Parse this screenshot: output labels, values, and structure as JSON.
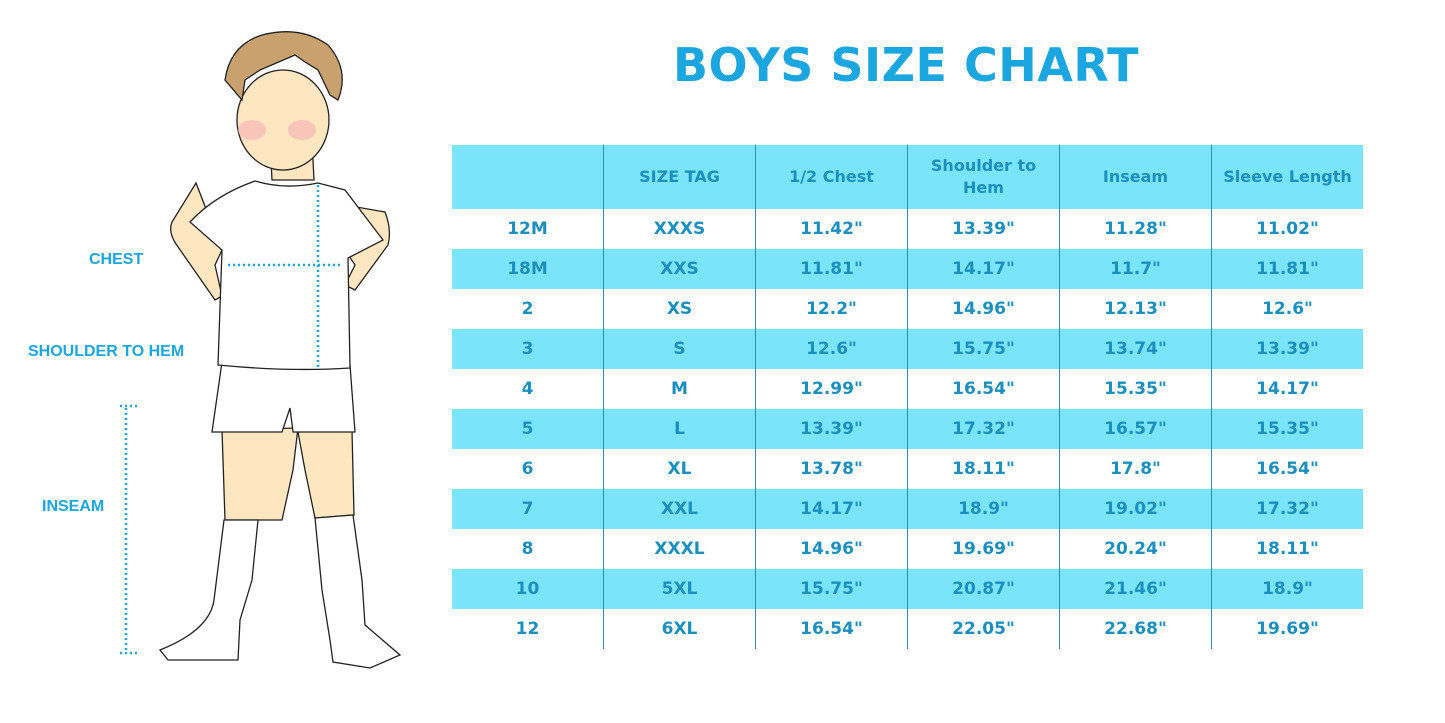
{
  "title": "BOYS SIZE CHART",
  "figure_labels": {
    "chest": "CHEST",
    "shoulder_to_hem": "SHOULDER TO HEM",
    "inseam": "INSEAM"
  },
  "colors": {
    "accent": "#1ba6df",
    "row_band": "#7ae4fb",
    "text": "#1b8fbd"
  },
  "table": {
    "headers": [
      "",
      "SIZE TAG",
      "1/2 Chest",
      "Shoulder to Hem",
      "Inseam",
      "Sleeve Length"
    ],
    "rows": [
      [
        "12M",
        "XXXS",
        "11.42\"",
        "13.39\"",
        "11.28\"",
        "11.02\""
      ],
      [
        "18M",
        "XXS",
        "11.81\"",
        "14.17\"",
        "11.7\"",
        "11.81\""
      ],
      [
        "2",
        "XS",
        "12.2\"",
        "14.96\"",
        "12.13\"",
        "12.6\""
      ],
      [
        "3",
        "S",
        "12.6\"",
        "15.75\"",
        "13.74\"",
        "13.39\""
      ],
      [
        "4",
        "M",
        "12.99\"",
        "16.54\"",
        "15.35\"",
        "14.17\""
      ],
      [
        "5",
        "L",
        "13.39\"",
        "17.32\"",
        "16.57\"",
        "15.35\""
      ],
      [
        "6",
        "XL",
        "13.78\"",
        "18.11\"",
        "17.8\"",
        "16.54\""
      ],
      [
        "7",
        "XXL",
        "14.17\"",
        "18.9\"",
        "19.02\"",
        "17.32\""
      ],
      [
        "8",
        "XXXL",
        "14.96\"",
        "19.69\"",
        "20.24\"",
        "18.11\""
      ],
      [
        "10",
        "5XL",
        "15.75\"",
        "20.87\"",
        "21.46\"",
        "18.9\""
      ],
      [
        "12",
        "6XL",
        "16.54\"",
        "22.05\"",
        "22.68\"",
        "19.69\""
      ]
    ]
  }
}
